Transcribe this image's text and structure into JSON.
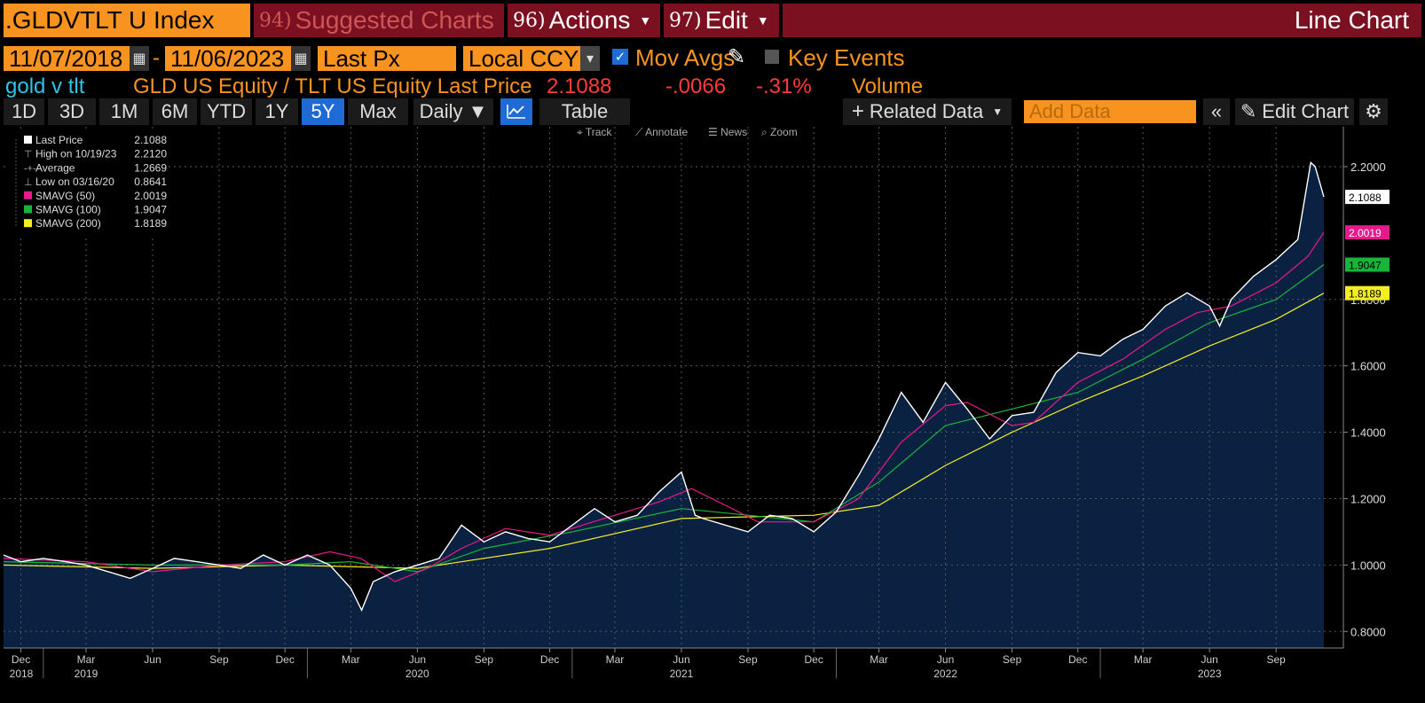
{
  "header": {
    "ticker": ".GLDVTLT U Index",
    "suggested_num": "94)",
    "suggested_label": "Suggested Charts",
    "actions_num": "96)",
    "actions_label": "Actions",
    "edit_num": "97)",
    "edit_label": "Edit",
    "chart_type_label": "Line Chart"
  },
  "controls": {
    "start_date": "11/07/2018",
    "end_date": "11/06/2023",
    "date_separator": "-",
    "field": "Last Px",
    "currency": "Local CCY",
    "mov_avgs_label": "Mov Avgs",
    "mov_avgs_checked": true,
    "key_events_label": "Key Events",
    "key_events_checked": false
  },
  "security_line": {
    "short_name": "gold v tlt",
    "description": "GLD US Equity / TLT US Equity Last Price",
    "last": "2.1088",
    "change": "-.0066",
    "pct_change": "-.31%",
    "volume_label": "Volume"
  },
  "toolbar": {
    "ranges": [
      "1D",
      "3D",
      "1M",
      "6M",
      "YTD",
      "1Y",
      "5Y",
      "Max"
    ],
    "active_range": "5Y",
    "frequency": "Daily ▼",
    "table_label": "Table",
    "related_data": "Related Data",
    "add_data_placeholder": "Add Data",
    "edit_chart": "Edit Chart"
  },
  "chart_tools": [
    "Track",
    "Annotate",
    "News",
    "Zoom"
  ],
  "colors": {
    "price": "#ffffff",
    "smavg50": "#e8198b",
    "smavg100": "#19b43c",
    "smavg200": "#f2ee22",
    "area_fill": "#0b2142",
    "grid": "#5a5a5a"
  },
  "legend": [
    {
      "label": "Last Price",
      "value": "2.1088",
      "marker": "square",
      "color": "#ffffff"
    },
    {
      "label": "High on 10/19/23",
      "value": "2.2120",
      "marker": "high",
      "color": "#aaaaaa"
    },
    {
      "label": "Average",
      "value": "1.2669",
      "marker": "avg",
      "color": "#aaaaaa"
    },
    {
      "label": "Low on 03/16/20",
      "value": "0.8641",
      "marker": "low",
      "color": "#aaaaaa"
    },
    {
      "label": "SMAVG (50)",
      "value": "2.0019",
      "marker": "square",
      "color": "#e8198b"
    },
    {
      "label": "SMAVG (100)",
      "value": "1.9047",
      "marker": "square",
      "color": "#19b43c"
    },
    {
      "label": "SMAVG (200)",
      "value": "1.8189",
      "marker": "square",
      "color": "#f2ee22"
    }
  ],
  "chart_data": {
    "type": "area",
    "ylim": [
      0.75,
      2.32
    ],
    "y_ticks": [
      "2.2000",
      "1.8000",
      "1.6000",
      "1.4000",
      "1.2000",
      "1.0000",
      "0.8000"
    ],
    "y_tick_values": [
      2.2,
      1.8,
      1.6,
      1.4,
      1.2,
      1.0,
      0.8
    ],
    "x_range": [
      "2018-11-07",
      "2023-11-06"
    ],
    "month_ticks": [
      {
        "date": "2018-12",
        "label": "Dec"
      },
      {
        "date": "2019-03",
        "label": "Mar"
      },
      {
        "date": "2019-06",
        "label": "Jun"
      },
      {
        "date": "2019-09",
        "label": "Sep"
      },
      {
        "date": "2019-12",
        "label": "Dec"
      },
      {
        "date": "2020-03",
        "label": "Mar"
      },
      {
        "date": "2020-06",
        "label": "Jun"
      },
      {
        "date": "2020-09",
        "label": "Sep"
      },
      {
        "date": "2020-12",
        "label": "Dec"
      },
      {
        "date": "2021-03",
        "label": "Mar"
      },
      {
        "date": "2021-06",
        "label": "Jun"
      },
      {
        "date": "2021-09",
        "label": "Sep"
      },
      {
        "date": "2021-12",
        "label": "Dec"
      },
      {
        "date": "2022-03",
        "label": "Mar"
      },
      {
        "date": "2022-06",
        "label": "Jun"
      },
      {
        "date": "2022-09",
        "label": "Sep"
      },
      {
        "date": "2022-12",
        "label": "Dec"
      },
      {
        "date": "2023-03",
        "label": "Mar"
      },
      {
        "date": "2023-06",
        "label": "Jun"
      },
      {
        "date": "2023-09",
        "label": "Sep"
      }
    ],
    "year_labels": [
      {
        "date": "2018-12",
        "label": "2018"
      },
      {
        "date": "2019-03",
        "label": "2019"
      },
      {
        "date": "2020-06",
        "label": "2020"
      },
      {
        "date": "2021-06",
        "label": "2021"
      },
      {
        "date": "2022-06",
        "label": "2022"
      },
      {
        "date": "2023-06",
        "label": "2023"
      }
    ],
    "year_boundaries": [
      "2019-01",
      "2020-01",
      "2021-01",
      "2022-01",
      "2023-01"
    ],
    "series": [
      {
        "name": "Last Price",
        "key": "price",
        "points": [
          [
            "2018-11-07",
            1.03
          ],
          [
            "2018-12-01",
            1.01
          ],
          [
            "2019-01-01",
            1.02
          ],
          [
            "2019-02-01",
            1.01
          ],
          [
            "2019-03-01",
            1.0
          ],
          [
            "2019-04-01",
            0.98
          ],
          [
            "2019-05-01",
            0.96
          ],
          [
            "2019-06-01",
            0.99
          ],
          [
            "2019-07-01",
            1.02
          ],
          [
            "2019-08-01",
            1.01
          ],
          [
            "2019-09-01",
            1.0
          ],
          [
            "2019-10-01",
            0.99
          ],
          [
            "2019-11-01",
            1.03
          ],
          [
            "2019-12-01",
            1.0
          ],
          [
            "2020-01-01",
            1.03
          ],
          [
            "2020-02-01",
            1.0
          ],
          [
            "2020-03-01",
            0.93
          ],
          [
            "2020-03-16",
            0.864
          ],
          [
            "2020-04-01",
            0.95
          ],
          [
            "2020-05-01",
            0.98
          ],
          [
            "2020-06-01",
            1.0
          ],
          [
            "2020-07-01",
            1.02
          ],
          [
            "2020-08-01",
            1.12
          ],
          [
            "2020-09-01",
            1.07
          ],
          [
            "2020-10-01",
            1.1
          ],
          [
            "2020-11-01",
            1.08
          ],
          [
            "2020-12-01",
            1.07
          ],
          [
            "2021-01-01",
            1.12
          ],
          [
            "2021-02-01",
            1.17
          ],
          [
            "2021-03-01",
            1.13
          ],
          [
            "2021-04-01",
            1.15
          ],
          [
            "2021-05-01",
            1.22
          ],
          [
            "2021-06-01",
            1.28
          ],
          [
            "2021-06-20",
            1.15
          ],
          [
            "2021-07-01",
            1.14
          ],
          [
            "2021-08-01",
            1.12
          ],
          [
            "2021-09-01",
            1.1
          ],
          [
            "2021-10-01",
            1.15
          ],
          [
            "2021-11-01",
            1.14
          ],
          [
            "2021-12-01",
            1.1
          ],
          [
            "2022-01-01",
            1.16
          ],
          [
            "2022-02-01",
            1.27
          ],
          [
            "2022-03-01",
            1.38
          ],
          [
            "2022-04-01",
            1.52
          ],
          [
            "2022-05-01",
            1.43
          ],
          [
            "2022-06-01",
            1.55
          ],
          [
            "2022-07-01",
            1.47
          ],
          [
            "2022-08-01",
            1.38
          ],
          [
            "2022-09-01",
            1.45
          ],
          [
            "2022-10-01",
            1.46
          ],
          [
            "2022-11-01",
            1.58
          ],
          [
            "2022-12-01",
            1.64
          ],
          [
            "2023-01-01",
            1.63
          ],
          [
            "2023-02-01",
            1.68
          ],
          [
            "2023-03-01",
            1.71
          ],
          [
            "2023-04-01",
            1.78
          ],
          [
            "2023-05-01",
            1.82
          ],
          [
            "2023-06-01",
            1.78
          ],
          [
            "2023-06-15",
            1.72
          ],
          [
            "2023-07-01",
            1.8
          ],
          [
            "2023-08-01",
            1.87
          ],
          [
            "2023-09-01",
            1.92
          ],
          [
            "2023-10-01",
            1.98
          ],
          [
            "2023-10-19",
            2.212
          ],
          [
            "2023-10-25",
            2.2
          ],
          [
            "2023-11-06",
            2.1088
          ]
        ]
      },
      {
        "name": "SMAVG (50)",
        "key": "smavg50",
        "points": [
          [
            "2018-11-07",
            1.02
          ],
          [
            "2019-03-01",
            1.01
          ],
          [
            "2019-06-01",
            0.98
          ],
          [
            "2019-09-01",
            1.0
          ],
          [
            "2019-12-01",
            1.01
          ],
          [
            "2020-02-01",
            1.04
          ],
          [
            "2020-03-15",
            1.02
          ],
          [
            "2020-05-01",
            0.95
          ],
          [
            "2020-06-15",
            0.99
          ],
          [
            "2020-08-01",
            1.05
          ],
          [
            "2020-10-01",
            1.11
          ],
          [
            "2020-12-01",
            1.09
          ],
          [
            "2021-03-01",
            1.15
          ],
          [
            "2021-05-01",
            1.19
          ],
          [
            "2021-06-15",
            1.23
          ],
          [
            "2021-08-01",
            1.18
          ],
          [
            "2021-09-15",
            1.13
          ],
          [
            "2021-12-01",
            1.13
          ],
          [
            "2022-02-01",
            1.2
          ],
          [
            "2022-04-01",
            1.37
          ],
          [
            "2022-06-01",
            1.48
          ],
          [
            "2022-07-01",
            1.49
          ],
          [
            "2022-09-01",
            1.42
          ],
          [
            "2022-10-01",
            1.43
          ],
          [
            "2022-12-01",
            1.55
          ],
          [
            "2023-02-01",
            1.62
          ],
          [
            "2023-04-01",
            1.71
          ],
          [
            "2023-05-15",
            1.76
          ],
          [
            "2023-07-01",
            1.78
          ],
          [
            "2023-09-01",
            1.85
          ],
          [
            "2023-10-15",
            1.93
          ],
          [
            "2023-11-06",
            2.0019
          ]
        ]
      },
      {
        "name": "SMAVG (100)",
        "key": "smavg100",
        "points": [
          [
            "2018-11-07",
            1.01
          ],
          [
            "2019-06-01",
            1.0
          ],
          [
            "2019-12-01",
            1.0
          ],
          [
            "2020-03-01",
            1.01
          ],
          [
            "2020-06-01",
            0.98
          ],
          [
            "2020-09-01",
            1.05
          ],
          [
            "2021-01-01",
            1.1
          ],
          [
            "2021-06-01",
            1.17
          ],
          [
            "2021-09-01",
            1.15
          ],
          [
            "2021-12-01",
            1.13
          ],
          [
            "2022-03-01",
            1.25
          ],
          [
            "2022-06-01",
            1.42
          ],
          [
            "2022-09-01",
            1.47
          ],
          [
            "2022-12-01",
            1.52
          ],
          [
            "2023-03-01",
            1.62
          ],
          [
            "2023-06-01",
            1.73
          ],
          [
            "2023-09-01",
            1.8
          ],
          [
            "2023-11-06",
            1.9047
          ]
        ]
      },
      {
        "name": "SMAVG (200)",
        "key": "smavg200",
        "points": [
          [
            "2018-11-07",
            1.0
          ],
          [
            "2019-06-01",
            0.99
          ],
          [
            "2019-12-01",
            1.0
          ],
          [
            "2020-06-01",
            0.99
          ],
          [
            "2020-12-01",
            1.05
          ],
          [
            "2021-06-01",
            1.14
          ],
          [
            "2021-12-01",
            1.15
          ],
          [
            "2022-03-01",
            1.18
          ],
          [
            "2022-06-01",
            1.3
          ],
          [
            "2022-09-01",
            1.4
          ],
          [
            "2022-12-01",
            1.49
          ],
          [
            "2023-03-01",
            1.57
          ],
          [
            "2023-06-01",
            1.66
          ],
          [
            "2023-09-01",
            1.74
          ],
          [
            "2023-11-06",
            1.8189
          ]
        ]
      }
    ],
    "end_labels": [
      {
        "key": "price",
        "value": 2.1088,
        "text": "2.1088",
        "bg": "#ffffff",
        "fg": "#000000"
      },
      {
        "key": "smavg50",
        "value": 2.0019,
        "text": "2.0019",
        "bg": "#e8198b",
        "fg": "#ffffff"
      },
      {
        "key": "smavg100",
        "value": 1.9047,
        "text": "1.9047",
        "bg": "#19b43c",
        "fg": "#000000"
      },
      {
        "key": "smavg200",
        "value": 1.8189,
        "text": "1.8189",
        "bg": "#f2ee22",
        "fg": "#000000"
      }
    ]
  }
}
